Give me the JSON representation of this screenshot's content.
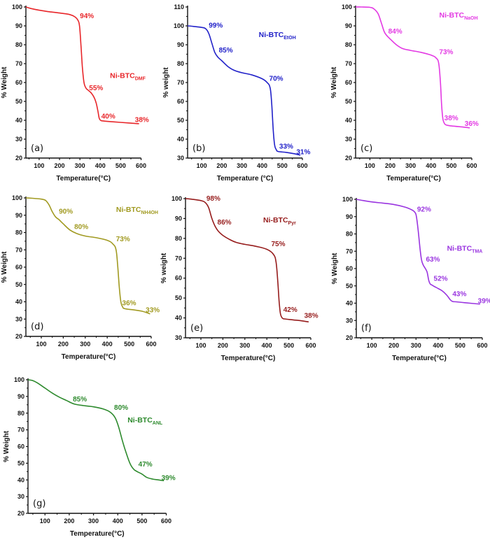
{
  "chart_data": [
    {
      "id": "a",
      "type": "line",
      "panel_label": "(a)",
      "sample_name": "Ni-BTC",
      "sample_sub": "DMF",
      "color": "#e8262a",
      "xlabel": "Temperature(°C)",
      "ylabel": "% Weight",
      "xlim": [
        35,
        605
      ],
      "ylim": [
        20,
        100
      ],
      "xticks": [
        100,
        200,
        300,
        400,
        500,
        600
      ],
      "yticks": [
        20,
        30,
        40,
        50,
        60,
        70,
        80,
        90,
        100
      ],
      "series": [
        {
          "name": "Ni-BTC DMF",
          "x": [
            35,
            60,
            100,
            150,
            200,
            250,
            275,
            290,
            298,
            305,
            312,
            320,
            330,
            340,
            355,
            370,
            380,
            388,
            395,
            402,
            410,
            450,
            500,
            550,
            590
          ],
          "y": [
            100,
            99.2,
            98.3,
            97.5,
            96.8,
            96,
            94.8,
            93,
            90,
            80,
            68,
            60,
            57,
            56,
            54.5,
            52,
            49,
            45,
            41,
            40,
            39.7,
            39.3,
            38.9,
            38.5,
            38.2
          ]
        }
      ],
      "annotations": [
        {
          "text": "94%",
          "x": 300,
          "y": 94
        },
        {
          "text": "55%",
          "x": 345,
          "y": 56
        },
        {
          "text": "40%",
          "x": 405,
          "y": 41
        },
        {
          "text": "38%",
          "x": 570,
          "y": 39
        }
      ]
    },
    {
      "id": "b",
      "type": "line",
      "panel_label": "(b)",
      "sample_name": "Ni-BTC",
      "sample_sub": "EtOH",
      "color": "#2121c9",
      "xlabel": "Temperature (°C)",
      "ylabel": "% weight",
      "xlim": [
        30,
        600
      ],
      "ylim": [
        25,
        110
      ],
      "xticks": [
        100,
        200,
        300,
        400,
        500,
        600
      ],
      "yticks": [
        30,
        40,
        50,
        60,
        70,
        80,
        90,
        100,
        110
      ],
      "series": [
        {
          "name": "Ni-BTC EtOH",
          "x": [
            30,
            60,
            100,
            120,
            135,
            150,
            165,
            180,
            200,
            230,
            260,
            300,
            350,
            400,
            425,
            440,
            448,
            455,
            462,
            470,
            480,
            520,
            560,
            590
          ],
          "y": [
            100,
            99.7,
            99.2,
            98.5,
            96,
            91,
            86,
            83.5,
            81.5,
            78.5,
            76.5,
            75.2,
            74,
            72,
            70,
            67,
            58,
            45,
            37,
            34.5,
            33.5,
            33,
            32.3,
            31.5
          ]
        }
      ],
      "annotations": [
        {
          "text": "99%",
          "x": 135,
          "y": 99
        },
        {
          "text": "85%",
          "x": 185,
          "y": 86
        },
        {
          "text": "70%",
          "x": 435,
          "y": 71
        },
        {
          "text": "33%",
          "x": 485,
          "y": 35
        },
        {
          "text": "31%",
          "x": 570,
          "y": 32
        }
      ]
    },
    {
      "id": "c",
      "type": "line",
      "panel_label": "(c)",
      "sample_name": "Ni-BTC",
      "sample_sub": "NaOH",
      "color": "#e339e3",
      "xlabel": "Temperature(°C)",
      "ylabel": "% Weight",
      "xlim": [
        30,
        600
      ],
      "ylim": [
        20,
        100
      ],
      "xticks": [
        100,
        200,
        300,
        400,
        500,
        600
      ],
      "yticks": [
        20,
        30,
        40,
        50,
        60,
        70,
        80,
        90,
        100
      ],
      "series": [
        {
          "name": "Ni-BTC NaOH",
          "x": [
            30,
            60,
            100,
            120,
            140,
            155,
            170,
            182,
            200,
            230,
            260,
            300,
            350,
            400,
            425,
            438,
            446,
            452,
            458,
            465,
            475,
            500,
            550,
            590
          ],
          "y": [
            100,
            100,
            99.8,
            99,
            96.5,
            92,
            87,
            85,
            83,
            80,
            78,
            77,
            76,
            74.5,
            73,
            70,
            60,
            48,
            41,
            38.5,
            37.5,
            37,
            36.5,
            36
          ]
        }
      ],
      "annotations": [
        {
          "text": "84%",
          "x": 190,
          "y": 86
        },
        {
          "text": "73%",
          "x": 440,
          "y": 75
        },
        {
          "text": "38%",
          "x": 465,
          "y": 40
        },
        {
          "text": "36%",
          "x": 565,
          "y": 37
        }
      ]
    },
    {
      "id": "d",
      "type": "line",
      "panel_label": "(d)",
      "sample_name": "Ni-BTC",
      "sample_sub": "NH4OH",
      "color": "#a19a21",
      "xlabel": "Temperature(°C)",
      "ylabel": "% Weight",
      "xlim": [
        30,
        600
      ],
      "ylim": [
        20,
        100
      ],
      "xticks": [
        100,
        200,
        300,
        400,
        500,
        600
      ],
      "yticks": [
        20,
        30,
        40,
        50,
        60,
        70,
        80,
        90,
        100
      ],
      "series": [
        {
          "name": "Ni-BTC NH4OH",
          "x": [
            30,
            60,
            100,
            120,
            135,
            150,
            165,
            180,
            200,
            230,
            260,
            300,
            350,
            400,
            425,
            440,
            448,
            455,
            462,
            470,
            480,
            520,
            560,
            595
          ],
          "y": [
            100,
            99.8,
            99.3,
            98.5,
            96,
            92,
            89,
            87.5,
            85,
            81.5,
            79.5,
            78,
            77,
            75.5,
            73.5,
            70,
            60,
            48,
            40,
            37,
            36,
            35.3,
            34.5,
            33
          ]
        }
      ],
      "annotations": [
        {
          "text": "90%",
          "x": 180,
          "y": 91
        },
        {
          "text": "80%",
          "x": 250,
          "y": 82
        },
        {
          "text": "73%",
          "x": 440,
          "y": 75
        },
        {
          "text": "36%",
          "x": 468,
          "y": 38
        },
        {
          "text": "33%",
          "x": 575,
          "y": 34
        }
      ]
    },
    {
      "id": "e",
      "type": "line",
      "panel_label": "(e)",
      "sample_name": "Ni-BTC",
      "sample_sub": "Pyr",
      "color": "#961c1c",
      "xlabel": "Temperature(°C)",
      "ylabel": "% weight",
      "xlim": [
        30,
        600
      ],
      "ylim": [
        30,
        105
      ],
      "xticks": [
        100,
        200,
        300,
        400,
        500,
        600
      ],
      "yticks": [
        30,
        40,
        50,
        60,
        70,
        80,
        90,
        100
      ],
      "series": [
        {
          "name": "Ni-BTC Pyr",
          "x": [
            30,
            60,
            100,
            120,
            135,
            150,
            165,
            180,
            200,
            230,
            260,
            300,
            350,
            400,
            430,
            442,
            450,
            456,
            462,
            470,
            480,
            520,
            560,
            590
          ],
          "y": [
            100,
            99.7,
            99,
            98,
            95.5,
            90,
            86,
            83.5,
            81.5,
            79.5,
            78,
            77,
            76,
            74.5,
            72,
            68,
            58,
            48,
            42,
            40,
            39.5,
            39,
            38.5,
            38
          ]
        }
      ],
      "annotations": [
        {
          "text": "98%",
          "x": 125,
          "y": 99
        },
        {
          "text": "86%",
          "x": 175,
          "y": 87
        },
        {
          "text": "75%",
          "x": 420,
          "y": 76
        },
        {
          "text": "42%",
          "x": 475,
          "y": 43
        },
        {
          "text": "38%",
          "x": 570,
          "y": 40
        }
      ]
    },
    {
      "id": "f",
      "type": "line",
      "panel_label": "(f)",
      "sample_name": "Ni-BTC",
      "sample_sub": "TMA",
      "color": "#9a35e0",
      "xlabel": "Temperature(°C)",
      "ylabel": "% Weight",
      "xlim": [
        30,
        600
      ],
      "ylim": [
        20,
        100
      ],
      "xticks": [
        100,
        200,
        300,
        400,
        500,
        600
      ],
      "yticks": [
        20,
        30,
        40,
        50,
        60,
        70,
        80,
        90,
        100
      ],
      "series": [
        {
          "name": "Ni-BTC TMA",
          "x": [
            30,
            60,
            100,
            150,
            200,
            250,
            280,
            295,
            302,
            310,
            318,
            325,
            333,
            340,
            350,
            358,
            365,
            372,
            385,
            400,
            420,
            440,
            455,
            465,
            480,
            520,
            560,
            590
          ],
          "y": [
            100,
            99.3,
            98.5,
            97.8,
            97,
            95.5,
            94,
            92.5,
            90,
            82,
            72,
            65,
            62,
            60.5,
            58,
            53,
            51,
            50.5,
            49.5,
            48.5,
            47,
            44.5,
            42,
            41,
            40.8,
            40.3,
            39.8,
            39.5
          ]
        }
      ],
      "annotations": [
        {
          "text": "92%",
          "x": 305,
          "y": 93
        },
        {
          "text": "63%",
          "x": 345,
          "y": 64
        },
        {
          "text": "52%",
          "x": 380,
          "y": 53
        },
        {
          "text": "43%",
          "x": 465,
          "y": 44
        },
        {
          "text": "39%",
          "x": 580,
          "y": 40
        }
      ]
    },
    {
      "id": "g",
      "type": "line",
      "panel_label": "(g)",
      "sample_name": "Ni-BTC",
      "sample_sub": "ANL",
      "color": "#2d8a2d",
      "xlabel": "Temperature(°C)",
      "ylabel": "% Weight",
      "xlim": [
        30,
        610
      ],
      "ylim": [
        20,
        100
      ],
      "xticks": [
        100,
        200,
        300,
        400,
        500,
        600
      ],
      "yticks": [
        20,
        30,
        40,
        50,
        60,
        70,
        80,
        90,
        100
      ],
      "series": [
        {
          "name": "Ni-BTC ANL",
          "x": [
            30,
            50,
            70,
            100,
            130,
            160,
            190,
            220,
            260,
            300,
            340,
            370,
            390,
            405,
            420,
            435,
            450,
            465,
            480,
            500,
            520,
            545,
            570,
            590
          ],
          "y": [
            100,
            99.5,
            98,
            95,
            92,
            89.5,
            87.5,
            85.5,
            84.5,
            83.8,
            82.5,
            80.5,
            77,
            71,
            63,
            56,
            50,
            46.5,
            45,
            43.5,
            41.5,
            40.5,
            40,
            39.5
          ]
        }
      ],
      "annotations": [
        {
          "text": "85%",
          "x": 215,
          "y": 87
        },
        {
          "text": "80%",
          "x": 385,
          "y": 82
        },
        {
          "text": "47%",
          "x": 485,
          "y": 48
        },
        {
          "text": "39%",
          "x": 580,
          "y": 40
        }
      ]
    }
  ]
}
